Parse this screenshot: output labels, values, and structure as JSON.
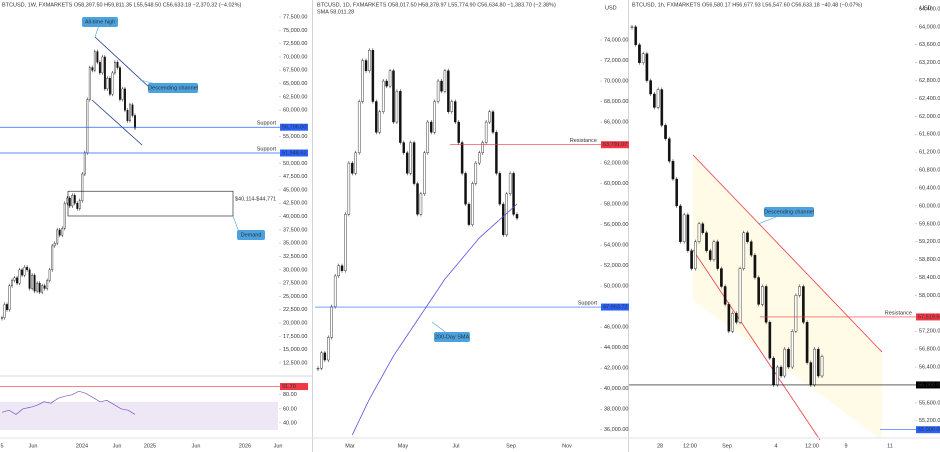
{
  "panels": [
    {
      "header": "BTCUSD, 1W, FXMARKETS  O58,397.50 H59,811.35 L55,548.50 C56,633.18 −2,370.32 (−4.02%)",
      "ylim": [
        10800,
        80700
      ],
      "yticks": [
        {
          "value": 12500,
          "label": "12,500.00"
        },
        {
          "value": 15000,
          "label": "15,000.00"
        },
        {
          "value": 17500,
          "label": "17,500.00"
        },
        {
          "value": 20000,
          "label": "20,000.00"
        },
        {
          "value": 22500,
          "label": "22,500.00"
        },
        {
          "value": 25000,
          "label": "25,000.00"
        },
        {
          "value": 27500,
          "label": "27,500.00"
        },
        {
          "value": 30000,
          "label": "30,000.00"
        },
        {
          "value": 32500,
          "label": "32,500.00"
        },
        {
          "value": 35000,
          "label": "35,000.00"
        },
        {
          "value": 37500,
          "label": "37,500.00"
        },
        {
          "value": 40000,
          "label": "40,000.00"
        },
        {
          "value": 42500,
          "label": "42,500.00"
        },
        {
          "value": 45000,
          "label": "45,000.00"
        },
        {
          "value": 47500,
          "label": "47,500.00"
        },
        {
          "value": 50000,
          "label": "50,000.00"
        },
        {
          "value": 55000,
          "label": "55,000.00"
        },
        {
          "value": 60000,
          "label": "60,000.00"
        },
        {
          "value": 62500,
          "label": "62,500.00"
        },
        {
          "value": 65000,
          "label": "65,000.00"
        },
        {
          "value": 67500,
          "label": "67,500.00"
        },
        {
          "value": 70000,
          "label": "70,000.00"
        },
        {
          "value": 72500,
          "label": "72,500.00"
        },
        {
          "value": 75000,
          "label": "75,000.00"
        },
        {
          "value": 77500,
          "label": "77,500.00"
        }
      ],
      "xlabels": [
        "5",
        "Jun",
        "2024",
        "Jun",
        "2025",
        "Jun",
        "2026",
        "Jun"
      ],
      "prices": [
        21000,
        23500,
        22500,
        27000,
        28000,
        28500,
        27500,
        30000,
        29000,
        30500,
        30000,
        26500,
        29000,
        26000,
        27500,
        25800,
        27000,
        26500,
        28000,
        30000,
        34500,
        35000,
        37500,
        36500,
        37800,
        42500,
        43500,
        42000,
        44000,
        42500,
        41500,
        43000,
        48000,
        52000,
        62000,
        68000,
        67500,
        71000,
        69000,
        67000,
        70000,
        64000,
        66000,
        63000,
        67000,
        69000,
        68000,
        62000,
        64000,
        60000,
        58000,
        61000,
        59000,
        56633
      ],
      "levels": [
        {
          "value": 56796,
          "label": "56,796.00",
          "name": "Support",
          "color": "#2962ff"
        },
        {
          "value": 51948.62,
          "label": "51,948.62",
          "name": "Support",
          "color": "#2962ff"
        }
      ],
      "zone": {
        "low": 40114,
        "high": 44771,
        "label": "$40,114-$44,771",
        "name": "Demand"
      },
      "callouts": [
        "All-time high",
        "Descending channel"
      ],
      "rsi": {
        "ylim": [
          27,
          101
        ],
        "yticks": [
          {
            "value": 40,
            "label": "40.00"
          },
          {
            "value": 60,
            "label": "60.00"
          },
          {
            "value": 80,
            "label": "80.00"
          }
        ],
        "marker": {
          "value": 91.7,
          "label": "91.70"
        },
        "values": [
          55,
          58,
          52,
          60,
          62,
          65,
          70,
          68,
          75,
          78,
          80,
          85,
          82,
          76,
          70,
          72,
          66,
          60,
          58,
          52
        ]
      }
    },
    {
      "header": "BTCUSD, 1D, FXMARKETS  O58,017.50 H58,378.97 L55,774.90 C56,634.80 −1,383.70 (−2.38%)",
      "currency": "USD",
      "ylim": [
        35000,
        77900
      ],
      "yticks": [
        {
          "value": 36000,
          "label": "36,000.00"
        },
        {
          "value": 38000,
          "label": "38,000.00"
        },
        {
          "value": 40000,
          "label": "40,000.00"
        },
        {
          "value": 42000,
          "label": "42,000.00"
        },
        {
          "value": 44000,
          "label": "44,000.00"
        },
        {
          "value": 46000,
          "label": "46,000.00"
        },
        {
          "value": 50000,
          "label": "50,000.00"
        },
        {
          "value": 52000,
          "label": "52,000.00"
        },
        {
          "value": 54000,
          "label": "54,000.00"
        },
        {
          "value": 56000,
          "label": "56,000.00"
        },
        {
          "value": 58000,
          "label": "58,000.00"
        },
        {
          "value": 60000,
          "label": "60,000.00"
        },
        {
          "value": 62000,
          "label": "62,000.00"
        },
        {
          "value": 66000,
          "label": "66,000.00"
        },
        {
          "value": 68000,
          "label": "68,000.00"
        },
        {
          "value": 70000,
          "label": "70,000.00"
        },
        {
          "value": 72000,
          "label": "72,000.00"
        },
        {
          "value": 74000,
          "label": "74,000.00"
        }
      ],
      "xlabels": [
        "Mar",
        "May",
        "Jul",
        "Sep",
        "Nov"
      ],
      "prices": [
        42000,
        43500,
        42800,
        45000,
        48000,
        51000,
        52000,
        51500,
        57000,
        62000,
        61000,
        63000,
        68000,
        72000,
        71000,
        73000,
        68000,
        65000,
        67000,
        70000,
        69500,
        71000,
        66000,
        69000,
        64000,
        63000,
        61000,
        64000,
        60000,
        57000,
        59000,
        63000,
        66000,
        65000,
        68000,
        70000,
        69000,
        71000,
        67000,
        68000,
        66000,
        64000,
        61000,
        58000,
        56000,
        60000,
        62000,
        63000,
        64000,
        66000,
        67000,
        65000,
        61000,
        58000,
        55000,
        59000,
        61000,
        57000,
        56634
      ],
      "sma": {
        "label": "SMA 58,011.28",
        "values": [
          null,
          null,
          null,
          null,
          null,
          null,
          null,
          null,
          null,
          null,
          35500,
          36200,
          36900,
          37600,
          38300,
          39000,
          39600,
          40200,
          40800,
          41400,
          42000,
          42600,
          43200,
          43700,
          44200,
          44700,
          45200,
          45700,
          46200,
          46700,
          47200,
          47700,
          48200,
          48700,
          49200,
          49700,
          50200,
          50700,
          51100,
          51500,
          51900,
          52300,
          52700,
          53100,
          53500,
          53900,
          54300,
          54700,
          55000,
          55300,
          55600,
          55900,
          56200,
          56500,
          56800,
          57100,
          57400,
          57700,
          58011
        ]
      },
      "levels": [
        {
          "value": 63791.07,
          "label": "63,791.07",
          "name": "Resistance",
          "color": "#f23645"
        },
        {
          "value": 47963.72,
          "label": "47,963.72",
          "name": "Support",
          "color": "#2962ff"
        }
      ],
      "callouts": [
        "200-Day SMA"
      ]
    },
    {
      "header": "BTCUSD, 1h, FXMARKETS  O56,580.17 H56,677.93 L56,547.60 C56,633.18 −40.48 (−0.07%)",
      "currency": "USD",
      "ylim": [
        54770,
        64600
      ],
      "yticks": [
        {
          "value": 55200,
          "label": "55,200.00"
        },
        {
          "value": 55600,
          "label": "55,600.00"
        },
        {
          "value": 56400,
          "label": "56,400.00"
        },
        {
          "value": 56800,
          "label": "56,800.00"
        },
        {
          "value": 57200,
          "label": "57,200.00"
        },
        {
          "value": 58000,
          "label": "58,000.00"
        },
        {
          "value": 58400,
          "label": "58,400.00"
        },
        {
          "value": 58800,
          "label": "58,800.00"
        },
        {
          "value": 59200,
          "label": "59,200.00"
        },
        {
          "value": 59600,
          "label": "59,600.00"
        },
        {
          "value": 60000,
          "label": "60,000.00"
        },
        {
          "value": 60400,
          "label": "60,400.00"
        },
        {
          "value": 60800,
          "label": "60,800.00"
        },
        {
          "value": 61200,
          "label": "61,200.00"
        },
        {
          "value": 61600,
          "label": "61,600.00"
        },
        {
          "value": 62000,
          "label": "62,000.00"
        },
        {
          "value": 62400,
          "label": "62,400.00"
        },
        {
          "value": 62800,
          "label": "62,800.00"
        },
        {
          "value": 63200,
          "label": "63,200.00"
        },
        {
          "value": 63600,
          "label": "63,600.00"
        },
        {
          "value": 64000,
          "label": "64,000.00"
        },
        {
          "value": 64400,
          "label": "64,400.00"
        }
      ],
      "xlabels": [
        "28",
        "12:00",
        "Sep",
        "4",
        "12:00",
        "9",
        "11"
      ],
      "prices": [
        64000,
        63600,
        63200,
        63400,
        62800,
        62500,
        62200,
        62600,
        61800,
        61500,
        61000,
        60600,
        60000,
        59200,
        59800,
        59000,
        58600,
        59200,
        59600,
        59400,
        59000,
        58800,
        59200,
        58600,
        58200,
        57800,
        57200,
        57600,
        57400,
        58600,
        59400,
        59200,
        58900,
        58400,
        57800,
        58200,
        57400,
        56600,
        56000,
        56400,
        56200,
        56800,
        56400,
        57200,
        58000,
        58200,
        57400,
        56500,
        56000,
        56800,
        56200,
        56634
      ],
      "levels": [
        {
          "value": 57519.54,
          "label": "57,519.54",
          "name": "Resistance",
          "color": "#f23645"
        },
        {
          "value": 56000,
          "label": "56,000.00",
          "color": "#000000"
        },
        {
          "value": 55000,
          "label": "55,000.00",
          "color": "#2962ff"
        }
      ],
      "callouts": [
        "Descending channel"
      ]
    }
  ]
}
